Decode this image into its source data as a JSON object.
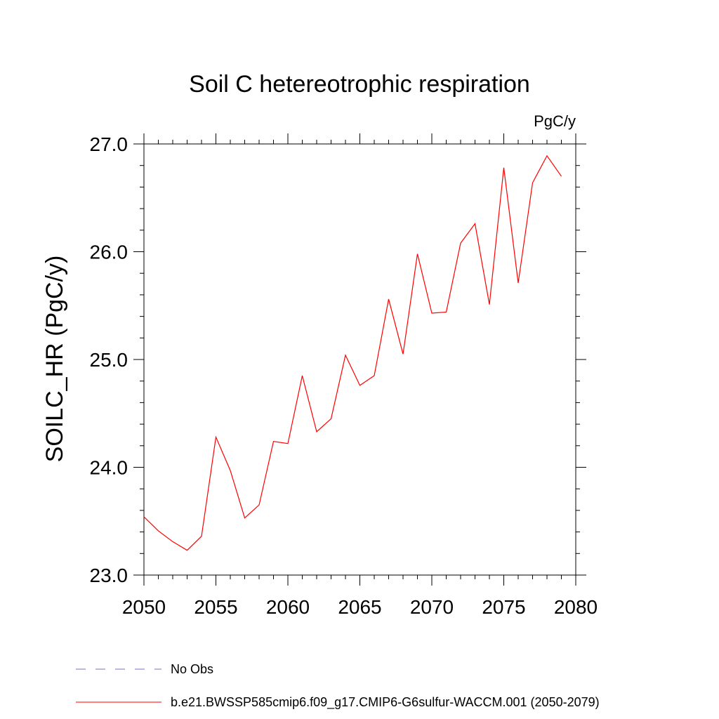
{
  "chart_data": {
    "type": "line",
    "title": "Soil C hetereotrophic respiration",
    "units_label": "PgC/y",
    "xlabel": "",
    "ylabel": "SOILC_HR  (PgC/y)",
    "xlim": [
      2050,
      2080
    ],
    "ylim": [
      23.0,
      27.0
    ],
    "x_ticks": [
      2050,
      2055,
      2060,
      2065,
      2070,
      2075,
      2080
    ],
    "x_tick_labels": [
      "2050",
      "2055",
      "2060",
      "2065",
      "2070",
      "2075",
      "2080"
    ],
    "y_ticks": [
      23.0,
      24.0,
      25.0,
      26.0,
      27.0
    ],
    "y_tick_labels": [
      "23.0",
      "24.0",
      "25.0",
      "26.0",
      "27.0"
    ],
    "grid": false,
    "series": [
      {
        "name": "b.e21.BWSSP585cmip6.f09_g17.CMIP6-G6sulfur-WACCM.001 (2050-2079)",
        "color": "#ff0000",
        "x": [
          2050,
          2051,
          2052,
          2053,
          2054,
          2055,
          2056,
          2057,
          2058,
          2059,
          2060,
          2061,
          2062,
          2063,
          2064,
          2065,
          2066,
          2067,
          2068,
          2069,
          2070,
          2071,
          2072,
          2073,
          2074,
          2075,
          2076,
          2077,
          2078,
          2079
        ],
        "y": [
          23.54,
          23.41,
          23.31,
          23.23,
          23.36,
          24.28,
          23.97,
          23.53,
          23.65,
          24.24,
          24.22,
          24.85,
          24.33,
          24.45,
          25.04,
          24.76,
          24.85,
          25.56,
          25.05,
          25.98,
          25.43,
          25.44,
          26.08,
          26.26,
          25.51,
          26.78,
          25.71,
          26.64,
          26.89,
          26.7
        ]
      }
    ],
    "legend": {
      "placement": "bottom-left",
      "entries": [
        {
          "label": "No Obs",
          "color": "#7a6fc6",
          "style": "dashed"
        },
        {
          "label": "b.e21.BWSSP585cmip6.f09_g17.CMIP6-G6sulfur-WACCM.001 (2050-2079)",
          "color": "#ff0000",
          "style": "solid"
        }
      ]
    }
  }
}
